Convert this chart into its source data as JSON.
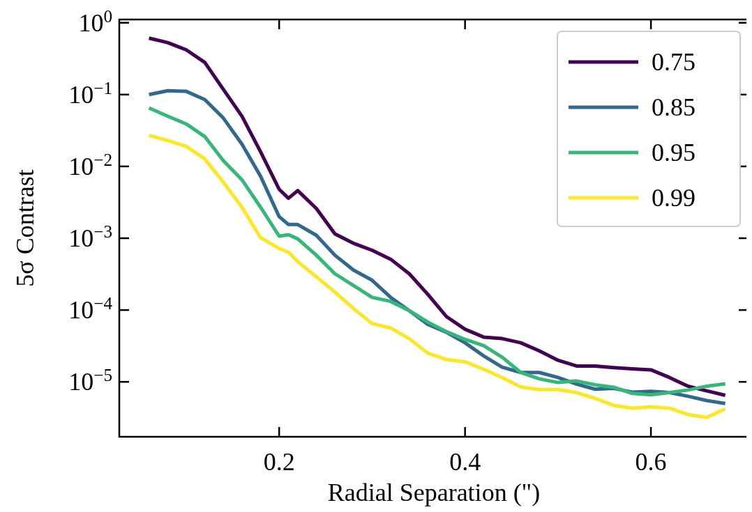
{
  "chart_data": {
    "type": "line",
    "xlabel": "Radial Separation (\")",
    "ylabel": "5σ Contrast",
    "x": [
      0.06,
      0.08,
      0.1,
      0.12,
      0.14,
      0.16,
      0.18,
      0.2,
      0.21,
      0.22,
      0.24,
      0.26,
      0.28,
      0.3,
      0.32,
      0.34,
      0.36,
      0.38,
      0.4,
      0.42,
      0.44,
      0.46,
      0.48,
      0.5,
      0.52,
      0.54,
      0.56,
      0.58,
      0.6,
      0.62,
      0.64,
      0.66,
      0.68
    ],
    "series": [
      {
        "name": "0.75",
        "color": "#440154",
        "values": [
          0.61,
          0.53,
          0.42,
          0.28,
          0.118,
          0.05,
          0.016,
          0.0048,
          0.0036,
          0.0046,
          0.0026,
          0.00115,
          0.00085,
          0.00068,
          0.00051,
          0.00032,
          0.000165,
          8.1e-05,
          5.4e-05,
          4.2e-05,
          4e-05,
          3.5e-05,
          2.7e-05,
          2e-05,
          1.66e-05,
          1.66e-05,
          1.58e-05,
          1.52e-05,
          1.47e-05,
          1.15e-05,
          8.7e-06,
          7.5e-06,
          6.5e-06
        ]
      },
      {
        "name": "0.85",
        "color": "#31688e",
        "values": [
          0.1,
          0.113,
          0.111,
          0.085,
          0.047,
          0.0204,
          0.0073,
          0.002,
          0.00155,
          0.00155,
          0.0011,
          0.00058,
          0.00036,
          0.00026,
          0.00015,
          9.8e-05,
          6.3e-05,
          4.9e-05,
          3.5e-05,
          2.3e-05,
          1.6e-05,
          1.35e-05,
          1.35e-05,
          1.15e-05,
          9.3e-06,
          7.9e-06,
          8.1e-06,
          7.2e-06,
          7.4e-06,
          7.1e-06,
          6.3e-06,
          5.5e-06,
          5e-06
        ]
      },
      {
        "name": "0.95",
        "color": "#35b779",
        "values": [
          0.065,
          0.05,
          0.039,
          0.026,
          0.012,
          0.0065,
          0.0027,
          0.00107,
          0.00112,
          0.00098,
          0.00058,
          0.00032,
          0.00022,
          0.00015,
          0.000132,
          9.8e-05,
          6.8e-05,
          5e-05,
          3.9e-05,
          3.2e-05,
          2.2e-05,
          1.35e-05,
          1.1e-05,
          9.8e-06,
          1.03e-05,
          9.1e-06,
          8.4e-06,
          6.9e-06,
          6.6e-06,
          7.1e-06,
          7.7e-06,
          8.7e-06,
          9.4e-06
        ]
      },
      {
        "name": "0.99",
        "color": "#fde725",
        "values": [
          0.027,
          0.023,
          0.019,
          0.0127,
          0.006,
          0.0027,
          0.00102,
          0.00072,
          0.00064,
          0.00047,
          0.00029,
          0.000178,
          0.000105,
          6.5e-05,
          5.6e-05,
          4e-05,
          2.5e-05,
          2.05e-05,
          1.9e-05,
          1.5e-05,
          1.15e-05,
          8.5e-06,
          7.8e-06,
          7.8e-06,
          7.1e-06,
          5.9e-06,
          4.7e-06,
          4.3e-06,
          4.5e-06,
          4.3e-06,
          3.5e-06,
          3.2e-06,
          4.2e-06
        ]
      }
    ],
    "log": "y",
    "xlim": [
      0.028,
      0.705
    ],
    "ylim": [
      1.72e-06,
      1.11
    ],
    "xticks": [
      0.2,
      0.4,
      0.6
    ],
    "yticks": [
      {
        "value": 1,
        "label": "10$^{0}$"
      },
      {
        "value": 0.1,
        "label": "10$^{−1}$"
      },
      {
        "value": 0.01,
        "label": "10$^{−2}$"
      },
      {
        "value": 0.001,
        "label": "10$^{−3}$"
      },
      {
        "value": 0.0001,
        "label": "10$^{−4}$"
      },
      {
        "value": 1e-05,
        "label": "10$^{−5}$"
      }
    ],
    "legend": "top right",
    "grid": false,
    "line_style": "solid",
    "marker": "none"
  }
}
